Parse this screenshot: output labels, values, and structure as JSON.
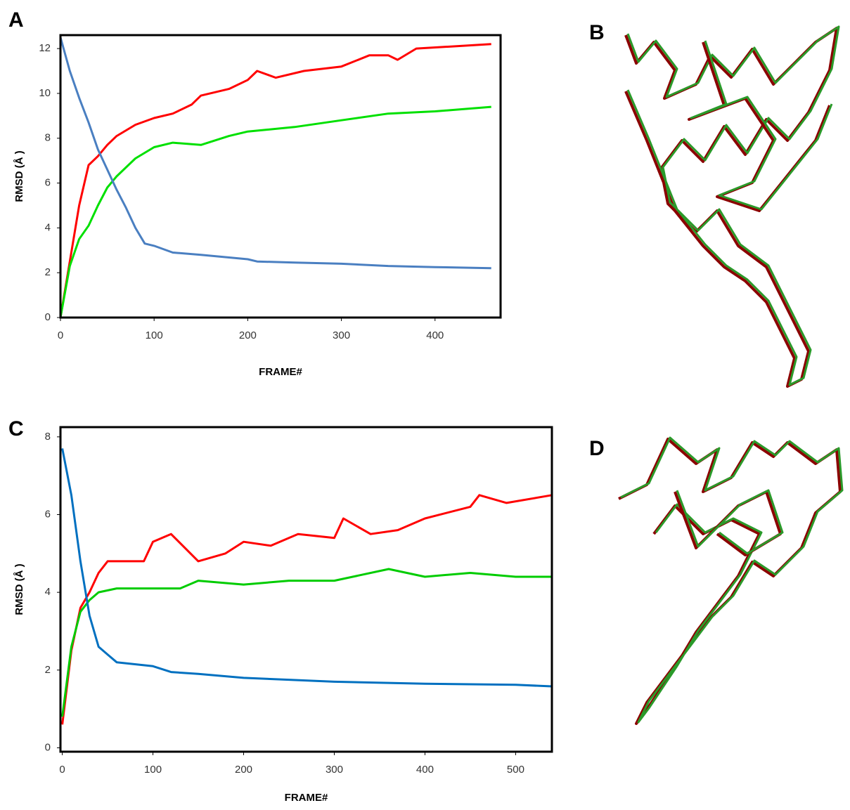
{
  "chart_data": [
    {
      "type": "line",
      "label": "A",
      "xlabel": "FRAME#",
      "ylabel": "RMSD (Å )",
      "xlim": [
        0,
        470
      ],
      "xticks": [
        0,
        100,
        200,
        300,
        400
      ],
      "ylim": [
        0,
        12.6
      ],
      "yticks": [
        0,
        2,
        4,
        6,
        8,
        10,
        12
      ],
      "series": [
        {
          "color": "#ff0000",
          "x": [
            0,
            10,
            20,
            30,
            40,
            50,
            60,
            80,
            100,
            120,
            140,
            150,
            180,
            200,
            210,
            230,
            260,
            300,
            330,
            350,
            360,
            380,
            420,
            460
          ],
          "values": [
            0,
            2.5,
            5,
            6.8,
            7.2,
            7.7,
            8.1,
            8.6,
            8.9,
            9.1,
            9.5,
            9.9,
            10.2,
            10.6,
            11.0,
            10.7,
            11.0,
            11.2,
            11.7,
            11.7,
            11.5,
            12.0,
            12.1,
            12.2
          ]
        },
        {
          "color": "#00e000",
          "x": [
            0,
            10,
            20,
            30,
            40,
            50,
            60,
            80,
            100,
            120,
            150,
            180,
            200,
            250,
            300,
            350,
            400,
            460
          ],
          "values": [
            0,
            2.3,
            3.5,
            4.1,
            5.0,
            5.8,
            6.3,
            7.1,
            7.6,
            7.8,
            7.7,
            8.1,
            8.3,
            8.5,
            8.8,
            9.1,
            9.2,
            9.4
          ]
        },
        {
          "color": "#4a7fc1",
          "x": [
            0,
            10,
            20,
            30,
            40,
            50,
            60,
            70,
            80,
            90,
            100,
            120,
            150,
            200,
            210,
            250,
            300,
            350,
            400,
            460
          ],
          "values": [
            12.5,
            11,
            9.8,
            8.7,
            7.5,
            6.6,
            5.7,
            4.9,
            4.0,
            3.3,
            3.2,
            2.9,
            2.8,
            2.6,
            2.5,
            2.45,
            2.4,
            2.3,
            2.25,
            2.2
          ]
        }
      ]
    },
    {
      "type": "line",
      "label": "C",
      "xlabel": "FRAME#",
      "ylabel": "RMSD (Å )",
      "xlim": [
        -2,
        540
      ],
      "xticks": [
        0,
        100,
        200,
        300,
        400,
        500
      ],
      "ylim": [
        -0.1,
        8.25
      ],
      "yticks": [
        0,
        2,
        4,
        6,
        8
      ],
      "series": [
        {
          "color": "#ff0000",
          "x": [
            0,
            10,
            20,
            30,
            40,
            50,
            70,
            90,
            100,
            120,
            150,
            180,
            200,
            230,
            260,
            300,
            310,
            340,
            370,
            400,
            450,
            460,
            490,
            540
          ],
          "values": [
            0.6,
            2.5,
            3.6,
            4.0,
            4.5,
            4.8,
            4.8,
            4.8,
            5.3,
            5.5,
            4.8,
            5.0,
            5.3,
            5.2,
            5.5,
            5.4,
            5.9,
            5.5,
            5.6,
            5.9,
            6.2,
            6.5,
            6.3,
            6.5
          ]
        },
        {
          "color": "#00cc00",
          "x": [
            0,
            10,
            20,
            30,
            40,
            60,
            80,
            100,
            130,
            150,
            200,
            250,
            300,
            360,
            400,
            450,
            500,
            540
          ],
          "values": [
            0.8,
            2.6,
            3.5,
            3.8,
            4.0,
            4.1,
            4.1,
            4.1,
            4.1,
            4.3,
            4.2,
            4.3,
            4.3,
            4.6,
            4.4,
            4.5,
            4.4,
            4.4
          ]
        },
        {
          "color": "#0070c0",
          "x": [
            0,
            10,
            20,
            30,
            40,
            50,
            60,
            100,
            120,
            150,
            200,
            250,
            300,
            400,
            500,
            540
          ],
          "values": [
            7.7,
            6.5,
            4.8,
            3.4,
            2.6,
            2.4,
            2.2,
            2.1,
            1.95,
            1.9,
            1.8,
            1.75,
            1.7,
            1.65,
            1.62,
            1.58
          ]
        }
      ]
    }
  ],
  "structures": [
    {
      "label": "B"
    },
    {
      "label": "D"
    }
  ]
}
